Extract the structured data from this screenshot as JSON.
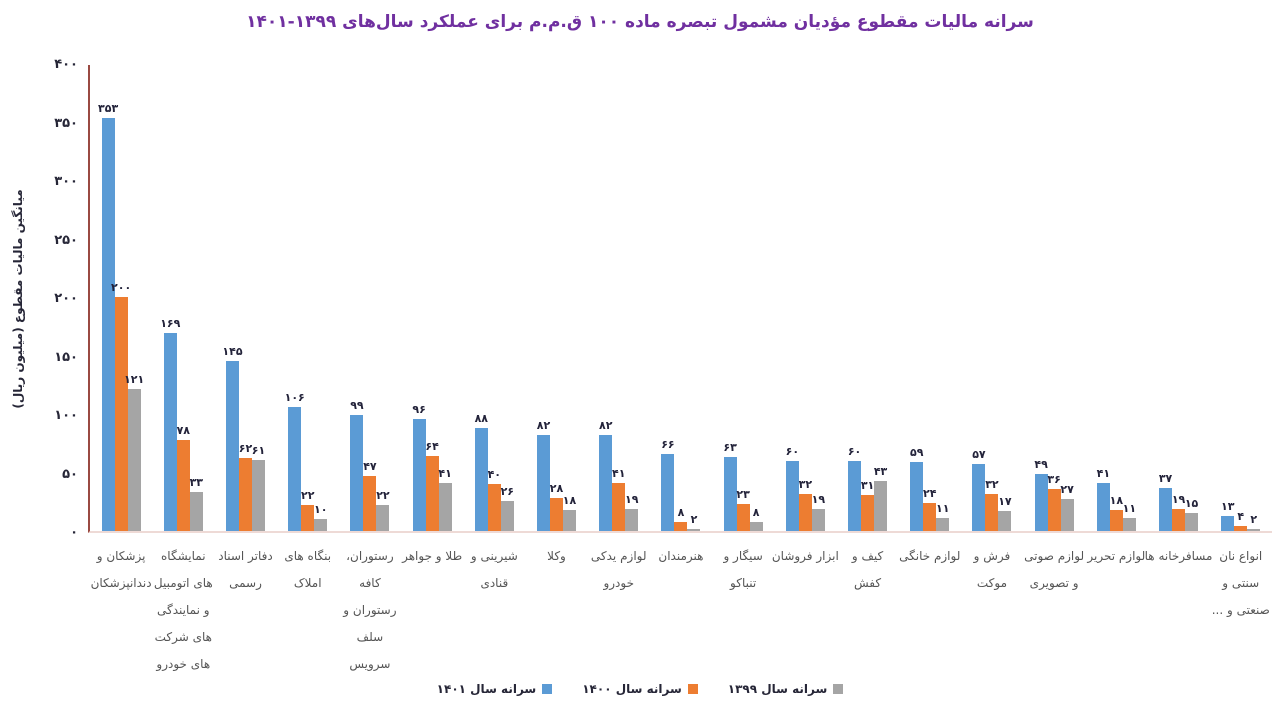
{
  "title": "سرانه مالیات مقطوع مؤدیان مشمول تبصره ماده ۱۰۰ ق.م.م برای عملکرد سال‌های ۱۳۹۹-۱۴۰۱",
  "colors": {
    "title": "#7030A0",
    "y_axis_line": "#9a4a42",
    "x_axis_line": "#eedad6",
    "tick_label": "#262637",
    "value_label": "#23233a",
    "category_label": "#555555",
    "series_blue": "#5B9BD5",
    "series_orange": "#ED7D31",
    "series_gray": "#A5A5A5"
  },
  "chart_data": {
    "type": "bar",
    "title": "سرانه مالیات مقطوع مؤدیان مشمول تبصره ماده ۱۰۰ ق.م.م برای عملکرد سال‌های ۱۳۹۹-۱۴۰۱",
    "xlabel": "",
    "ylabel": "میانگین مالیات مقطوع (میلیون ریال)",
    "ylim": [
      0,
      400
    ],
    "y_ticks": [
      400,
      350,
      300,
      250,
      200,
      150,
      100,
      50,
      0
    ],
    "grid": false,
    "value_labels": true,
    "number_format": "persian-digits",
    "legend_position": "bottom-center",
    "categories": [
      "پزشکان و دندانپزشکان",
      "نمایشگاه های اتومبیل و نمایندگی های شرکت های خودرو",
      "دفاتر اسناد رسمی",
      "بنگاه های املاک",
      "رستوران، کافه رستوران و سلف سرویس",
      "طلا و جواهر",
      "شیرینی و قنادی",
      "وکلا",
      "لوازم یدکی خودرو",
      "هنرمندان",
      "سیگار و تنباکو",
      "ابزار فروشان",
      "کیف و کفش",
      "لوازم خانگی",
      "فرش و موکت",
      "لوازم صوتی و تصویری",
      "لوازم تحریر",
      "مسافرخانه ها",
      "انواع نان سنتی و صنعتی و ..."
    ],
    "categories_lines": [
      [
        "پزشکان و",
        "دندانپزشکان"
      ],
      [
        "نمایشگاه",
        "های اتومبیل",
        "و نمایندگی",
        "های شرکت",
        "های خودرو"
      ],
      [
        "دفاتر اسناد",
        "رسمی"
      ],
      [
        "بنگاه های",
        "املاک"
      ],
      [
        "رستوران،",
        "کافه",
        "رستوران و",
        "سلف",
        "سرویس"
      ],
      [
        "طلا و جواهر"
      ],
      [
        "شیرینی و",
        "قنادی"
      ],
      [
        "وکلا"
      ],
      [
        "لوازم یدکی",
        "خودرو"
      ],
      [
        "هنرمندان"
      ],
      [
        "سیگار و",
        "تنباکو"
      ],
      [
        "ابزار فروشان"
      ],
      [
        "کیف و",
        "کفش"
      ],
      [
        "لوازم خانگی"
      ],
      [
        "فرش و",
        "موکت"
      ],
      [
        "لوازم صوتی",
        "و تصویری"
      ],
      [
        "لوازم تحریر"
      ],
      [
        "مسافرخانه ها"
      ],
      [
        "انواع نان",
        "سنتی و",
        "صنعتی و ..."
      ]
    ],
    "series": [
      {
        "name": "سرانه سال ۱۴۰۱",
        "color": "#5B9BD5",
        "values": [
          353,
          169,
          145,
          106,
          99,
          96,
          88,
          82,
          82,
          66,
          63,
          60,
          60,
          59,
          57,
          49,
          41,
          37,
          13
        ]
      },
      {
        "name": "سرانه سال ۱۴۰۰",
        "color": "#ED7D31",
        "values": [
          200,
          78,
          62,
          22,
          47,
          64,
          40,
          28,
          41,
          8,
          23,
          32,
          31,
          24,
          32,
          36,
          18,
          19,
          4
        ]
      },
      {
        "name": "سرانه سال ۱۳۹۹",
        "color": "#A5A5A5",
        "values": [
          121,
          33,
          61,
          10,
          22,
          41,
          26,
          18,
          19,
          2,
          8,
          19,
          43,
          11,
          17,
          27,
          11,
          15,
          2
        ]
      }
    ]
  }
}
